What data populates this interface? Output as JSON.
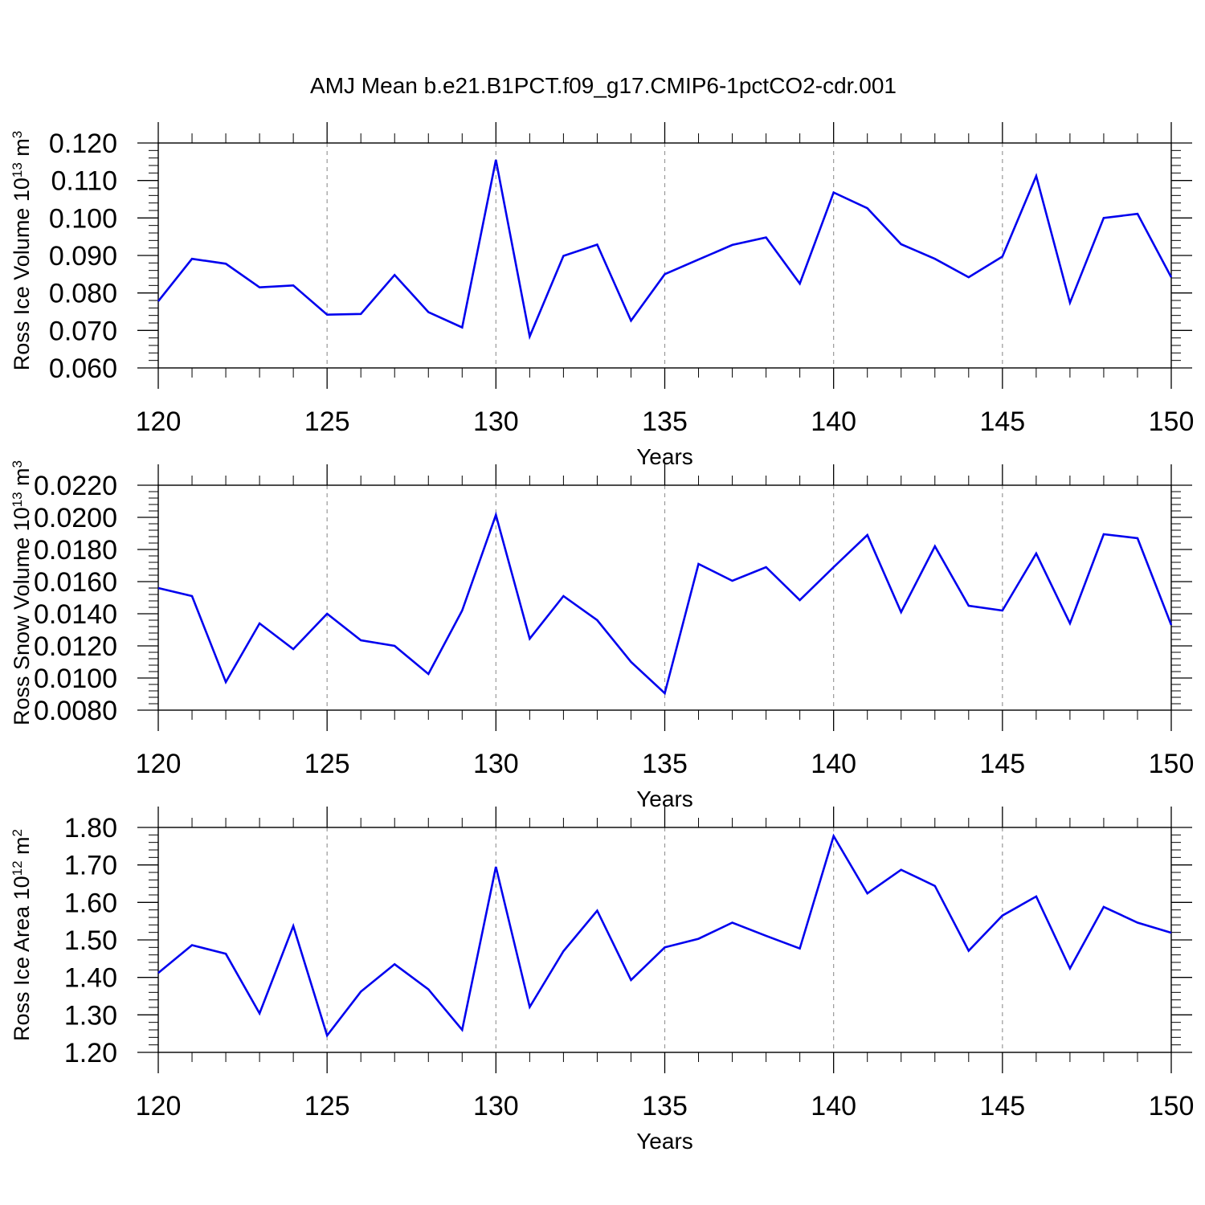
{
  "title": "AMJ Mean b.e21.B1PCT.f09_g17.CMIP6-1pctCO2-cdr.001",
  "chart_data": [
    {
      "type": "line",
      "ylabel": {
        "text": "Ross Ice Volume 10",
        "exponent": "13",
        "unit": " m",
        "unit_exponent": "3"
      },
      "xlabel": "Years",
      "xlim": [
        120,
        150
      ],
      "ylim": [
        0.06,
        0.12
      ],
      "xticks": [
        120,
        125,
        130,
        135,
        140,
        145,
        150
      ],
      "xtick_labels": [
        "120",
        "125",
        "130",
        "135",
        "140",
        "145",
        "150"
      ],
      "yticks": [
        0.06,
        0.07,
        0.08,
        0.09,
        0.1,
        0.11,
        0.12
      ],
      "ytick_labels": [
        "0.060",
        "0.070",
        "0.080",
        "0.090",
        "0.100",
        "0.110",
        "0.120"
      ],
      "grid": "vertical dashed at major x ticks",
      "series": [
        {
          "color": "#0000ee",
          "x": [
            120,
            121,
            122,
            123,
            124,
            125,
            126,
            127,
            128,
            129,
            130,
            131,
            132,
            133,
            134,
            135,
            136,
            137,
            138,
            139,
            140,
            141,
            142,
            143,
            144,
            145,
            146,
            147,
            148,
            149,
            150
          ],
          "values": [
            0.0778,
            0.0891,
            0.0878,
            0.0815,
            0.082,
            0.0742,
            0.0744,
            0.0848,
            0.0749,
            0.0708,
            0.1155,
            0.0684,
            0.0899,
            0.0929,
            0.0726,
            0.085,
            0.0889,
            0.0928,
            0.0948,
            0.0825,
            0.1068,
            0.1026,
            0.093,
            0.0891,
            0.0842,
            0.0897,
            0.1112,
            0.0774,
            0.1,
            0.1011,
            0.0842
          ]
        }
      ]
    },
    {
      "type": "line",
      "ylabel": {
        "text": "Ross Snow Volume 10",
        "exponent": "13",
        "unit": " m",
        "unit_exponent": "3"
      },
      "xlabel": "Years",
      "xlim": [
        120,
        150
      ],
      "ylim": [
        0.008,
        0.022
      ],
      "xticks": [
        120,
        125,
        130,
        135,
        140,
        145,
        150
      ],
      "xtick_labels": [
        "120",
        "125",
        "130",
        "135",
        "140",
        "145",
        "150"
      ],
      "yticks": [
        0.008,
        0.01,
        0.012,
        0.014,
        0.016,
        0.018,
        0.02,
        0.022
      ],
      "ytick_labels": [
        "0.0080",
        "0.0100",
        "0.0120",
        "0.0140",
        "0.0160",
        "0.0180",
        "0.0200",
        "0.0220"
      ],
      "grid": "vertical dashed at major x ticks",
      "series": [
        {
          "color": "#0000ee",
          "x": [
            120,
            121,
            122,
            123,
            124,
            125,
            126,
            127,
            128,
            129,
            130,
            131,
            132,
            133,
            134,
            135,
            136,
            137,
            138,
            139,
            140,
            141,
            142,
            143,
            144,
            145,
            146,
            147,
            148,
            149,
            150
          ],
          "values": [
            0.0156,
            0.0151,
            0.00975,
            0.0134,
            0.0118,
            0.014,
            0.01235,
            0.012,
            0.01025,
            0.0142,
            0.02015,
            0.01245,
            0.0151,
            0.0136,
            0.011,
            0.00905,
            0.0171,
            0.01605,
            0.0169,
            0.01485,
            0.0169,
            0.0189,
            0.0141,
            0.0182,
            0.0145,
            0.0142,
            0.01775,
            0.0134,
            0.01895,
            0.0187,
            0.0133
          ]
        }
      ]
    },
    {
      "type": "line",
      "ylabel": {
        "text": "Ross Ice Area 10",
        "exponent": "12",
        "unit": " m",
        "unit_exponent": "2"
      },
      "xlabel": "Years",
      "xlim": [
        120,
        150
      ],
      "ylim": [
        1.2,
        1.8
      ],
      "xticks": [
        120,
        125,
        130,
        135,
        140,
        145,
        150
      ],
      "xtick_labels": [
        "120",
        "125",
        "130",
        "135",
        "140",
        "145",
        "150"
      ],
      "yticks": [
        1.2,
        1.3,
        1.4,
        1.5,
        1.6,
        1.7,
        1.8
      ],
      "ytick_labels": [
        "1.20",
        "1.30",
        "1.40",
        "1.50",
        "1.60",
        "1.70",
        "1.80"
      ],
      "grid": "vertical dashed at major x ticks",
      "series": [
        {
          "color": "#0000ee",
          "x": [
            120,
            121,
            122,
            123,
            124,
            125,
            126,
            127,
            128,
            129,
            130,
            131,
            132,
            133,
            134,
            135,
            136,
            137,
            138,
            139,
            140,
            141,
            142,
            143,
            144,
            145,
            146,
            147,
            148,
            149,
            150
          ],
          "values": [
            1.412,
            1.486,
            1.463,
            1.304,
            1.537,
            1.245,
            1.362,
            1.435,
            1.368,
            1.26,
            1.695,
            1.321,
            1.47,
            1.578,
            1.393,
            1.48,
            1.503,
            1.546,
            1.511,
            1.477,
            1.777,
            1.624,
            1.687,
            1.644,
            1.471,
            1.565,
            1.616,
            1.424,
            1.588,
            1.546,
            1.519
          ]
        }
      ]
    }
  ]
}
